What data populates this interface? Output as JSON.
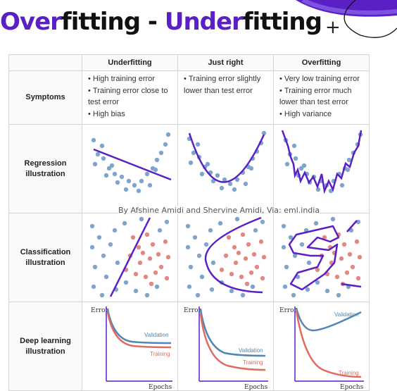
{
  "title": {
    "part1": "Over",
    "part2": "fitting - ",
    "part3": "Under",
    "part4": "fitting"
  },
  "plus_symbol": "+",
  "columns": [
    "Underfitting",
    "Just right",
    "Overfitting"
  ],
  "rows": {
    "symptoms": "Symptoms",
    "regression": [
      "Regression",
      "illustration"
    ],
    "classification": [
      "Classification",
      "illustration"
    ],
    "deep": [
      "Deep learning",
      "illustration"
    ]
  },
  "symptoms": {
    "underfitting": [
      "High training error",
      "Training error close to test error",
      "High bias"
    ],
    "just_right": [
      "Training error slightly lower than test error"
    ],
    "overfitting": [
      "Very low training error",
      "Training error much lower than test error",
      "High variance"
    ]
  },
  "credit": "By Afshine Amidi and Shervine Amidi, Via: eml.india",
  "dl_chart": {
    "y_axis": "Error",
    "x_axis": "Epochs",
    "validation": "Validation",
    "training": "Training"
  },
  "colors": {
    "accent": "#5b1fc6",
    "point_blue": "#7ea6cc",
    "point_red": "#e08b80",
    "curve_red": "#e06b5f",
    "curve_blue": "#4f86b7"
  }
}
